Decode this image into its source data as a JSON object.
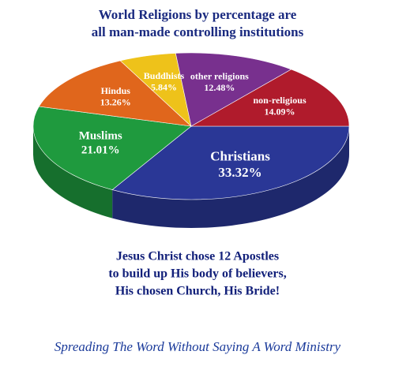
{
  "chart_data": {
    "type": "pie",
    "title": [
      "World Religions by percentage are",
      "all man-made controlling institutions"
    ],
    "categories": [
      "Christians",
      "Muslims",
      "Hindus",
      "Buddhists",
      "other religions",
      "non-religious"
    ],
    "values": [
      33.32,
      21.01,
      13.26,
      5.84,
      12.48,
      14.09
    ],
    "value_labels": [
      "33.32%",
      "21.01%",
      "13.26%",
      "5.84%",
      "12.48%",
      "14.09%"
    ],
    "colors": [
      "#2a3796",
      "#1f9a3e",
      "#e0661c",
      "#eec21a",
      "#78308e",
      "#b01b2c"
    ],
    "annotation": [
      "Jesus Christ chose 12 Apostles",
      "to build up His body of believers,",
      "His chosen Church, His Bride!"
    ],
    "footer": "Spreading The Word Without Saying A Word Ministry"
  }
}
